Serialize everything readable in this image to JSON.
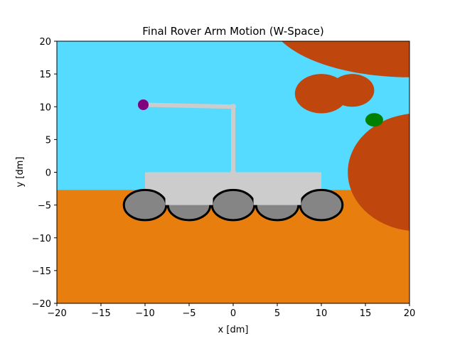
{
  "chart_data": {
    "type": "scene-plot",
    "title": "Final Rover Arm Motion (W-Space)",
    "xlabel": "x [dm]",
    "ylabel": "y [dm]",
    "xlim": [
      -20,
      20
    ],
    "ylim": [
      -20,
      20
    ],
    "xticks": [
      -20,
      -15,
      -10,
      -5,
      0,
      5,
      10,
      15,
      20
    ],
    "yticks": [
      -20,
      -15,
      -10,
      -5,
      0,
      5,
      10,
      15,
      20
    ],
    "grid": false,
    "colors": {
      "sky": "#55dbff",
      "ground": "#e87e0e",
      "rock": "#bf470e",
      "rover_body": "#cccccc",
      "wheel": "#858585",
      "wheel_outline": "#000000",
      "arm": "#cccccc",
      "end_effector": "#800080",
      "target": "#008000"
    },
    "ground_level_y": -2.7,
    "rover_body": {
      "x": [
        -10,
        10
      ],
      "y": [
        -5,
        0
      ]
    },
    "wheels": [
      {
        "cx": -10,
        "cy": -5,
        "rx": 2.4,
        "ry": 2.3,
        "outline": true
      },
      {
        "cx": -5,
        "cy": -5,
        "rx": 2.4,
        "ry": 2.3,
        "outline": true
      },
      {
        "cx": 0,
        "cy": -5,
        "rx": 2.4,
        "ry": 2.3,
        "outline": true
      },
      {
        "cx": 5,
        "cy": -5,
        "rx": 2.4,
        "ry": 2.3,
        "outline": true
      },
      {
        "cx": 10,
        "cy": -5,
        "rx": 2.4,
        "ry": 2.3,
        "outline": true
      }
    ],
    "arm_points": [
      [
        0,
        0
      ],
      [
        0,
        10
      ],
      [
        -10,
        10.3
      ]
    ],
    "end_effector": {
      "x": -10.2,
      "y": 10.3
    },
    "target": {
      "x": 16,
      "y": 8
    },
    "rocks": [
      {
        "cx": 20,
        "cy": 24,
        "rx": 16,
        "ry": 9.5
      },
      {
        "cx": 10,
        "cy": 12,
        "rx": 3,
        "ry": 3
      },
      {
        "cx": 13.5,
        "cy": 12.5,
        "rx": 2.5,
        "ry": 2.5
      },
      {
        "cx": 21,
        "cy": 0,
        "rx": 8,
        "ry": 9
      }
    ]
  }
}
